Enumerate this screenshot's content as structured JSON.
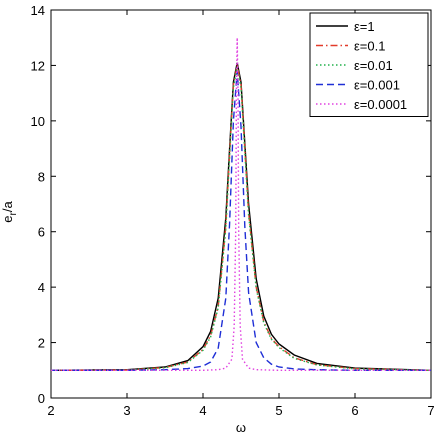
{
  "chart_data": {
    "type": "line",
    "title": "",
    "xlabel": "ω",
    "ylabel": "e_r/a",
    "xlim": [
      2,
      7
    ],
    "ylim": [
      0,
      14
    ],
    "x_ticks": [
      2,
      3,
      4,
      5,
      6,
      7
    ],
    "y_ticks": [
      0,
      2,
      4,
      6,
      8,
      10,
      12,
      14
    ],
    "grid": false,
    "legend_position": "top-right",
    "series": [
      {
        "name": "ε=1",
        "color": "#000000",
        "style": "solid",
        "x": [
          2.0,
          3.0,
          3.5,
          3.8,
          4.0,
          4.1,
          4.2,
          4.3,
          4.35,
          4.4,
          4.45,
          4.5,
          4.55,
          4.6,
          4.7,
          4.8,
          4.9,
          5.0,
          5.2,
          5.5,
          6.0,
          7.0
        ],
        "y": [
          1.0,
          1.02,
          1.12,
          1.35,
          1.85,
          2.4,
          3.6,
          6.5,
          9.0,
          11.4,
          12.1,
          11.4,
          9.2,
          7.0,
          4.3,
          2.95,
          2.3,
          1.95,
          1.55,
          1.25,
          1.08,
          1.0
        ]
      },
      {
        "name": "ε=0.1",
        "color": "#e23b2a",
        "style": "dashdot",
        "x": [
          2.0,
          3.0,
          3.5,
          3.8,
          4.0,
          4.1,
          4.2,
          4.3,
          4.35,
          4.4,
          4.45,
          4.5,
          4.55,
          4.6,
          4.7,
          4.8,
          4.9,
          5.0,
          5.2,
          5.5,
          6.0,
          7.0
        ],
        "y": [
          1.0,
          1.01,
          1.1,
          1.3,
          1.75,
          2.25,
          3.3,
          6.2,
          8.8,
          11.3,
          12.0,
          11.3,
          9.0,
          6.7,
          4.0,
          2.75,
          2.15,
          1.85,
          1.45,
          1.2,
          1.06,
          1.0
        ]
      },
      {
        "name": "ε=0.01",
        "color": "#22b14c",
        "style": "dotted",
        "x": [
          2.0,
          3.0,
          3.5,
          3.8,
          4.0,
          4.1,
          4.2,
          4.3,
          4.35,
          4.4,
          4.45,
          4.5,
          4.55,
          4.6,
          4.7,
          4.8,
          4.9,
          5.0,
          5.2,
          5.5,
          6.0,
          7.0
        ],
        "y": [
          1.0,
          1.01,
          1.09,
          1.28,
          1.72,
          2.2,
          3.25,
          6.1,
          8.7,
          11.2,
          11.95,
          11.2,
          8.9,
          6.6,
          3.95,
          2.7,
          2.12,
          1.82,
          1.43,
          1.19,
          1.05,
          1.0
        ]
      },
      {
        "name": "ε=0.001",
        "color": "#1f2fd6",
        "style": "dashed",
        "x": [
          2.0,
          3.0,
          3.5,
          3.8,
          4.0,
          4.1,
          4.2,
          4.3,
          4.35,
          4.4,
          4.45,
          4.5,
          4.55,
          4.6,
          4.7,
          4.8,
          4.9,
          5.0,
          5.2,
          5.5,
          6.0,
          7.0
        ],
        "y": [
          1.0,
          1.0,
          1.02,
          1.06,
          1.15,
          1.3,
          1.8,
          3.6,
          6.3,
          10.0,
          11.8,
          9.8,
          6.2,
          3.8,
          2.0,
          1.45,
          1.22,
          1.12,
          1.05,
          1.02,
          1.0,
          1.0
        ]
      },
      {
        "name": "ε=0.0001",
        "color": "#e040e0",
        "style": "dotted",
        "x": [
          2.0,
          3.0,
          4.0,
          4.2,
          4.3,
          4.38,
          4.41,
          4.43,
          4.44,
          4.45,
          4.46,
          4.47,
          4.49,
          4.52,
          4.6,
          4.7,
          5.0,
          6.0,
          7.0
        ],
        "y": [
          1.0,
          1.0,
          1.0,
          1.02,
          1.08,
          1.4,
          2.6,
          6.0,
          11.0,
          13.0,
          11.0,
          6.0,
          2.6,
          1.4,
          1.08,
          1.02,
          1.0,
          1.0,
          1.0
        ]
      }
    ]
  }
}
